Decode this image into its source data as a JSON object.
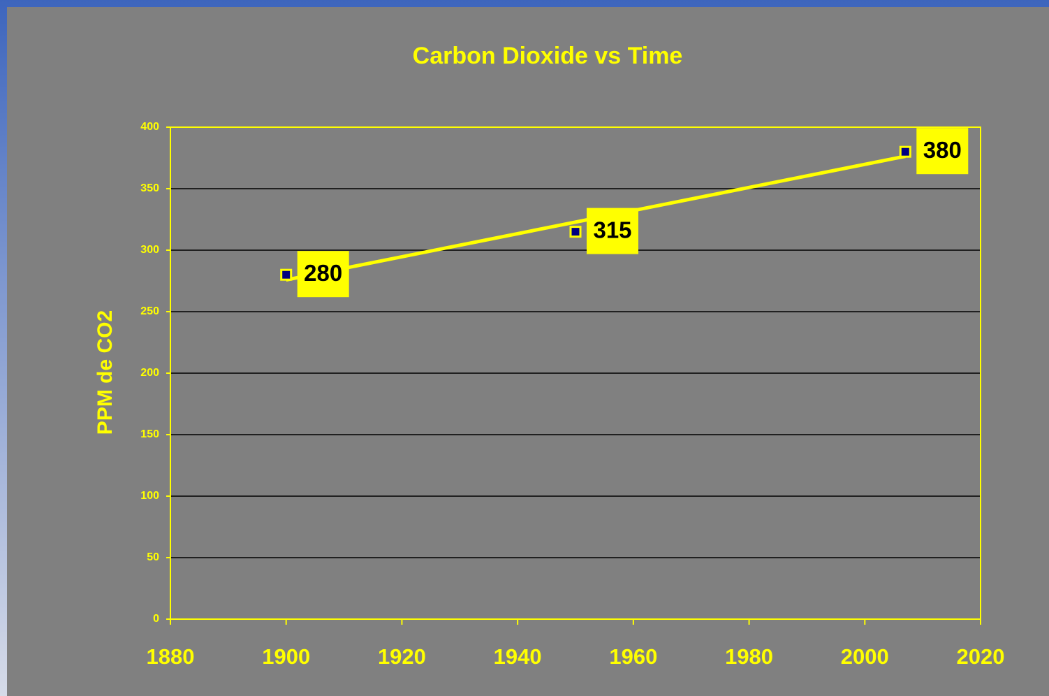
{
  "chart_data": {
    "type": "scatter",
    "title": "Carbon Dioxide vs Time",
    "y_label": "PPM de CO2",
    "x": [
      1900,
      1950,
      2007
    ],
    "values": [
      280,
      315,
      380
    ],
    "xlim": [
      1880,
      2020
    ],
    "xticks": [
      1880,
      1900,
      1920,
      1940,
      1960,
      1980,
      2000,
      2020
    ],
    "ylim": [
      0,
      400
    ],
    "yticks": [
      0,
      50,
      100,
      150,
      200,
      250,
      300,
      350,
      400
    ],
    "grid": true,
    "trendline": "linear",
    "color": "#ffff00",
    "marker_color": "#000080"
  }
}
